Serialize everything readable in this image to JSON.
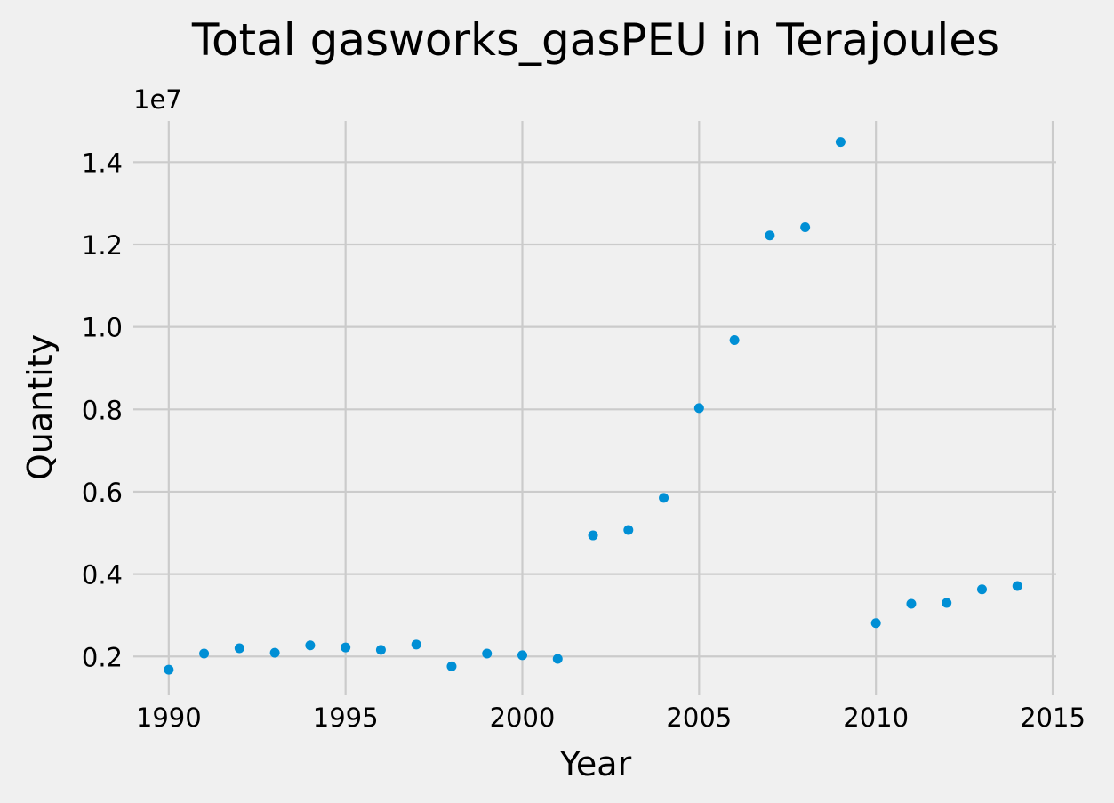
{
  "chart_data": {
    "type": "scatter",
    "title": "Total gasworks_gasPEU in Terajoules",
    "xlabel": "Year",
    "ylabel": "Quantity",
    "y_offset_label": "1e7",
    "y_scale": 10000000,
    "xlim": [
      1989.2,
      2015.1
    ],
    "ylim": [
      0.125,
      1.5
    ],
    "x_ticks": [
      1990,
      1995,
      2000,
      2005,
      2010,
      2015
    ],
    "y_ticks": [
      0.2,
      0.4,
      0.6,
      0.8,
      1.0,
      1.2,
      1.4
    ],
    "y_tick_labels": [
      "0.2",
      "0.4",
      "0.6",
      "0.8",
      "1.0",
      "1.2",
      "1.4"
    ],
    "grid": true,
    "point_color": "#008fd5",
    "background": "#f0f0f0",
    "points": [
      {
        "x": 1990,
        "y": 0.168
      },
      {
        "x": 1991,
        "y": 0.207
      },
      {
        "x": 1992,
        "y": 0.22
      },
      {
        "x": 1993,
        "y": 0.209
      },
      {
        "x": 1994,
        "y": 0.227
      },
      {
        "x": 1995,
        "y": 0.222
      },
      {
        "x": 1996,
        "y": 0.216
      },
      {
        "x": 1997,
        "y": 0.229
      },
      {
        "x": 1998,
        "y": 0.176
      },
      {
        "x": 1999,
        "y": 0.207
      },
      {
        "x": 2000,
        "y": 0.203
      },
      {
        "x": 2001,
        "y": 0.194
      },
      {
        "x": 2002,
        "y": 0.494
      },
      {
        "x": 2003,
        "y": 0.507
      },
      {
        "x": 2004,
        "y": 0.585
      },
      {
        "x": 2005,
        "y": 0.803
      },
      {
        "x": 2006,
        "y": 0.968
      },
      {
        "x": 2007,
        "y": 1.222
      },
      {
        "x": 2008,
        "y": 1.242
      },
      {
        "x": 2009,
        "y": 1.449
      },
      {
        "x": 2010,
        "y": 0.281
      },
      {
        "x": 2011,
        "y": 0.328
      },
      {
        "x": 2012,
        "y": 0.33
      },
      {
        "x": 2013,
        "y": 0.363
      },
      {
        "x": 2014,
        "y": 0.371
      }
    ]
  }
}
